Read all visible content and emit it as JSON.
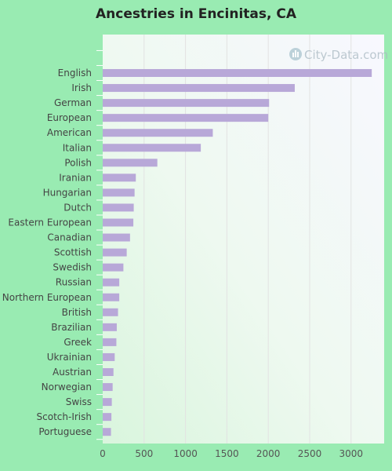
{
  "chart_data": {
    "type": "bar",
    "orientation": "horizontal",
    "title": "Ancestries in Encinitas, CA",
    "xlabel": "",
    "ylabel": "",
    "categories": [
      "English",
      "Irish",
      "German",
      "European",
      "American",
      "Italian",
      "Polish",
      "Iranian",
      "Hungarian",
      "Dutch",
      "Eastern European",
      "Canadian",
      "Scottish",
      "Swedish",
      "Russian",
      "Northern European",
      "British",
      "Brazilian",
      "Greek",
      "Ukrainian",
      "Austrian",
      "Norwegian",
      "Swiss",
      "Scotch-Irish",
      "Portuguese"
    ],
    "values": [
      3250,
      2320,
      2010,
      2000,
      1330,
      1185,
      660,
      400,
      385,
      375,
      370,
      330,
      290,
      250,
      200,
      200,
      185,
      170,
      165,
      145,
      130,
      120,
      110,
      105,
      100
    ],
    "xlim": [
      0,
      3400
    ],
    "xticks": [
      0,
      500,
      1000,
      1500,
      2000,
      2500,
      3000
    ],
    "bar_color": "#b8a8d8",
    "grid": true
  },
  "watermark": {
    "text": "City-Data.com"
  }
}
